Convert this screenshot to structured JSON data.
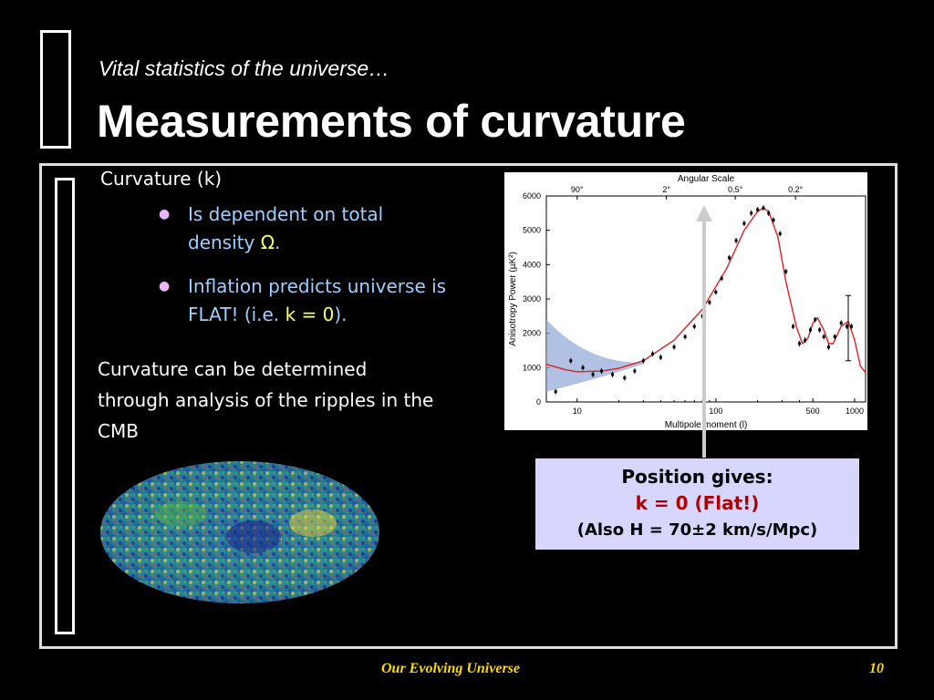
{
  "slide": {
    "subtitle": "Vital statistics of the universe…",
    "title": "Measurements of curvature",
    "curvature_label": "Curvature (k)",
    "bullet1": {
      "text": "Is dependent on total density ",
      "omega": "Ω",
      "end": "."
    },
    "bullet2": {
      "text": "Inflation predicts  universe is FLAT! (i.e. ",
      "highlight": "k = 0",
      "end": ")."
    },
    "paragraph": "Curvature can be determined through analysis of the ripples in the CMB",
    "callout": {
      "line1": "Position gives:",
      "line2": "k = 0 (Flat!)",
      "line3": "(Also H = 70±2 km/s/Mpc)"
    },
    "footer_left": "Our Evolving Universe",
    "footer_right": "10"
  },
  "colors": {
    "background": "#000000",
    "bullet_text": "#9ed0ff",
    "highlight": "#ffff66",
    "footer": "#ffd800",
    "callout_bg": "#d6d6ff",
    "callout_red": "#b10000",
    "curve": "#e02020"
  },
  "chart_data": {
    "type": "line",
    "top_axis_label": "Angular Scale",
    "top_ticks": [
      "90°",
      "2°",
      "0.5°",
      "0.2°"
    ],
    "xlabel": "Multipole moment (l)",
    "ylabel": "Anisotropy Power (µK²)",
    "xscale": "log",
    "xlim": [
      6,
      1200
    ],
    "ylim": [
      0,
      6000
    ],
    "xticks": [
      "10",
      "100",
      "500",
      "1000"
    ],
    "yticks": [
      "0",
      "1000",
      "2000",
      "3000",
      "4000",
      "5000",
      "6000"
    ],
    "series": [
      {
        "kind": "model-curve",
        "x": [
          6,
          8,
          10,
          15,
          20,
          30,
          50,
          80,
          120,
          160,
          200,
          220,
          240,
          280,
          320,
          380,
          420,
          460,
          500,
          540,
          600,
          650,
          700,
          800,
          900,
          1000,
          1100,
          1200
        ],
        "y": [
          1100,
          950,
          880,
          900,
          980,
          1200,
          1800,
          2700,
          3900,
          5000,
          5550,
          5650,
          5550,
          4800,
          3500,
          2200,
          1700,
          1850,
          2300,
          2450,
          2100,
          1700,
          1700,
          2200,
          2350,
          1800,
          1050,
          850
        ]
      },
      {
        "kind": "measurements",
        "x": [
          7,
          9,
          11,
          13,
          15,
          18,
          22,
          26,
          30,
          35,
          40,
          50,
          60,
          70,
          80,
          90,
          100,
          110,
          125,
          140,
          160,
          180,
          200,
          220,
          240,
          260,
          290,
          320,
          360,
          400,
          440,
          480,
          520,
          560,
          600,
          650,
          720,
          800,
          880,
          950
        ],
        "y": [
          300,
          1200,
          1000,
          800,
          900,
          800,
          700,
          900,
          1200,
          1400,
          1300,
          1600,
          1900,
          2200,
          2500,
          2900,
          3200,
          3600,
          4200,
          4700,
          5200,
          5500,
          5600,
          5650,
          5500,
          5300,
          4900,
          3800,
          2200,
          1700,
          1800,
          2100,
          2400,
          2100,
          1900,
          1600,
          1900,
          2300,
          2200,
          2200
        ]
      }
    ],
    "cosmic_variance_band": {
      "x_start": 6,
      "x_end": 30
    }
  }
}
